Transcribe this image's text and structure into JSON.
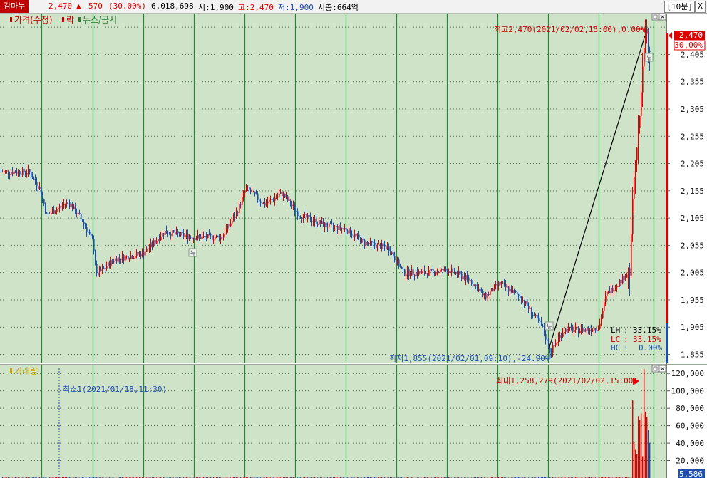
{
  "header": {
    "stock_name": "감마누",
    "price": "2,470",
    "change": "570",
    "change_pct": "(30.00%)",
    "volume": "6,018,698",
    "open": "시:1,900",
    "high": "고:2,470",
    "low": "저:1,900",
    "market_cap": "시총:664억",
    "period": "[10분]",
    "close": "X"
  },
  "price_panel": {
    "legend": [
      {
        "label": "가격(수정)",
        "color": "#cc0000"
      },
      {
        "label": "락",
        "color": "#cc0000"
      },
      {
        "label": "뉴스/공시",
        "color": "#2e7d32"
      }
    ],
    "high_label": "최고2,470(2021/02/02,15:00),0.00%",
    "low_label": "최저1,855(2021/02/01,09:10),-24.90%",
    "current_price": "2,470",
    "current_pct": "30.00%",
    "axis_ticks": [
      "2,405",
      "2,355",
      "2,305",
      "2,255",
      "2,205",
      "2,155",
      "2,105",
      "2,055",
      "2,005",
      "1,955",
      "1,905",
      "1,855"
    ],
    "info": [
      {
        "label": "LH",
        "value": "33.15%",
        "color": "#000000"
      },
      {
        "label": "LC",
        "value": "33.15%",
        "color": "#cc0000"
      },
      {
        "label": "HC",
        "value": "0.00%",
        "color": "#1a4fb0"
      }
    ],
    "news_marker": "뉴"
  },
  "volume_panel": {
    "title": "거래량",
    "max_label": "최대1,258,279(2021/02/02,15:00)",
    "min_label": "최소1(2021/01/18,11:30)",
    "axis_ticks": [
      "120,000",
      "100,000",
      "80,000",
      "60,000",
      "40,000",
      "20,000"
    ],
    "current_volume": "5,586"
  },
  "chart_data": {
    "type": "candlestick",
    "y_range": [
      1840,
      2480
    ],
    "volume_range": [
      0,
      130000
    ],
    "key_values": {
      "open": 1900,
      "high": 2470,
      "low": 1900,
      "close": 2470,
      "period_high": 2470,
      "period_low": 1855,
      "max_volume": 1258279
    },
    "colors": {
      "up": "#e00000",
      "down": "#1a4fb0",
      "background": "#cfe3c9"
    }
  }
}
